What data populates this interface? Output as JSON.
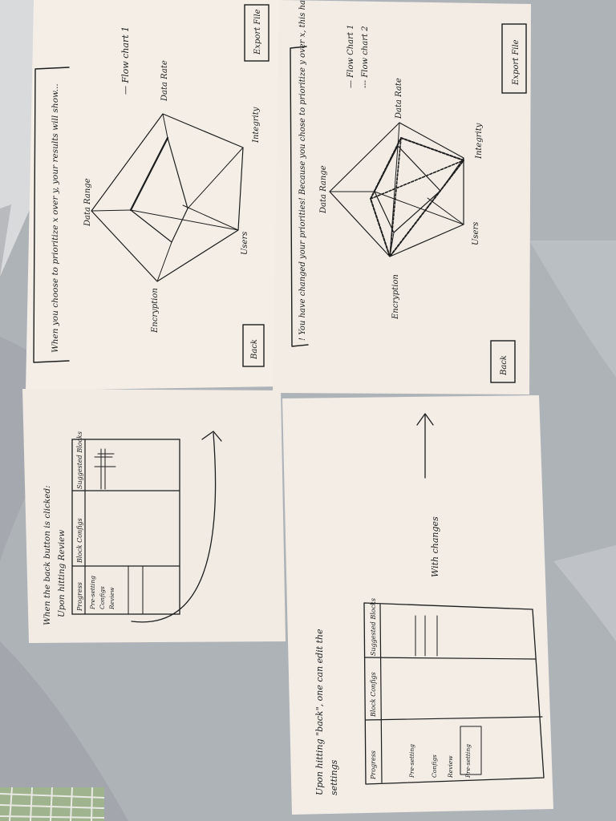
{
  "background": {
    "fabric_color": "#aeb3b8",
    "paper_color": "#f4eee6",
    "ink_color": "#1d1d1d"
  },
  "sheet_tr": {
    "caption": "When you choose to prioritize x over y, your results will show...",
    "legend": [
      "— Flow chart 1"
    ],
    "axes": [
      "Data Range",
      "Data Rate",
      "Integrity",
      "Users",
      "Encryption"
    ],
    "export_label": "Export File",
    "back_label": "Back"
  },
  "sheet_br": {
    "caption": "! You have changed your priorities! Because you chose to prioritize y over x, this has been affected:",
    "legend": [
      "— Flow Chart 1",
      "--- Flow chart 2"
    ],
    "axes": [
      "Data Range",
      "Data Rate",
      "Integrity",
      "Users",
      "Encryption"
    ],
    "export_label": "Export File",
    "back_label": "Back"
  },
  "sheet_tl": {
    "note": "When the back button is clicked:",
    "subnote": "Upon hitting Review",
    "columns": [
      "Progress",
      "Block Configs",
      "Suggested Blocks"
    ],
    "progress_items": [
      "Pre-setting",
      "Configs",
      "Review"
    ]
  },
  "sheet_bl": {
    "note_line1": "Upon hitting \"back\", one can edit the",
    "note_line2": "settings",
    "arrow_label": "With changes",
    "columns": [
      "Progress",
      "Block Configs",
      "Suggested Blocks"
    ],
    "progress_items": [
      "Pre-setting",
      "Configs",
      "Review",
      "Pre-setting"
    ]
  }
}
